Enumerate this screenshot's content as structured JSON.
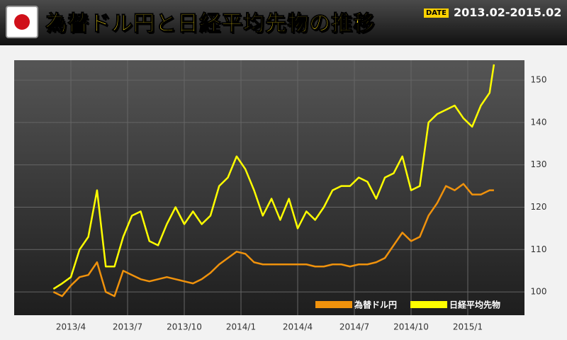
{
  "header": {
    "title": "為替ドル円と日経平均先物の推移",
    "date_label": "DATE",
    "date_range": "2013.02-2015.02"
  },
  "chart_data": {
    "type": "line",
    "x": [
      0,
      2,
      4,
      6,
      8,
      10,
      12,
      14,
      16,
      18,
      20,
      22,
      24,
      26,
      28,
      30,
      32,
      34,
      36,
      38,
      40,
      42,
      44,
      46,
      48,
      50,
      52,
      54,
      56,
      58,
      60,
      62,
      64,
      66,
      68,
      70,
      72,
      74,
      76,
      78,
      80,
      82,
      84,
      86,
      88,
      90,
      92,
      94,
      96,
      98,
      100,
      101
    ],
    "series": [
      {
        "name": "為替ドル円",
        "color": "#f0920c",
        "values": [
          100,
          99,
          101.5,
          103.5,
          104,
          107,
          100,
          99,
          105,
          104,
          103,
          102.5,
          103,
          103.5,
          103,
          102.5,
          102,
          103,
          104.5,
          106.5,
          108,
          109.5,
          109,
          107,
          106.5,
          106.5,
          106.5,
          106.5,
          106.5,
          106.5,
          106,
          106,
          106.5,
          106.5,
          106,
          106.5,
          106.5,
          107,
          108,
          111,
          114,
          112,
          113,
          118,
          121,
          125,
          124,
          125.5,
          123,
          123,
          124,
          124
        ]
      },
      {
        "name": "日経平均先物",
        "color": "#ffff00",
        "values": [
          100.7,
          102,
          103.5,
          110,
          113,
          124,
          106,
          106,
          113,
          118,
          119,
          112,
          111,
          116,
          120,
          116,
          119,
          116,
          118,
          125,
          127,
          132,
          129,
          124,
          118,
          122,
          117,
          122,
          115,
          119,
          117,
          120,
          124,
          125,
          125,
          127,
          126,
          122,
          127,
          128,
          132,
          124,
          125,
          140,
          142,
          143,
          144,
          141,
          139,
          144,
          147,
          153.7
        ]
      }
    ],
    "xlim": [
      -9,
      108
    ],
    "xticks": [
      {
        "value": 4,
        "label": "2013/4"
      },
      {
        "value": 17,
        "label": "2013/7"
      },
      {
        "value": 30,
        "label": "2013/10"
      },
      {
        "value": 43,
        "label": "2014/1"
      },
      {
        "value": 56,
        "label": "2014/4"
      },
      {
        "value": 69,
        "label": "2014/7"
      },
      {
        "value": 82,
        "label": "2014/10"
      },
      {
        "value": 95,
        "label": "2015/1"
      }
    ],
    "ylim": [
      94.5,
      154.7
    ],
    "yticks": [
      100,
      110,
      120,
      130,
      140,
      150
    ],
    "grid": true
  }
}
